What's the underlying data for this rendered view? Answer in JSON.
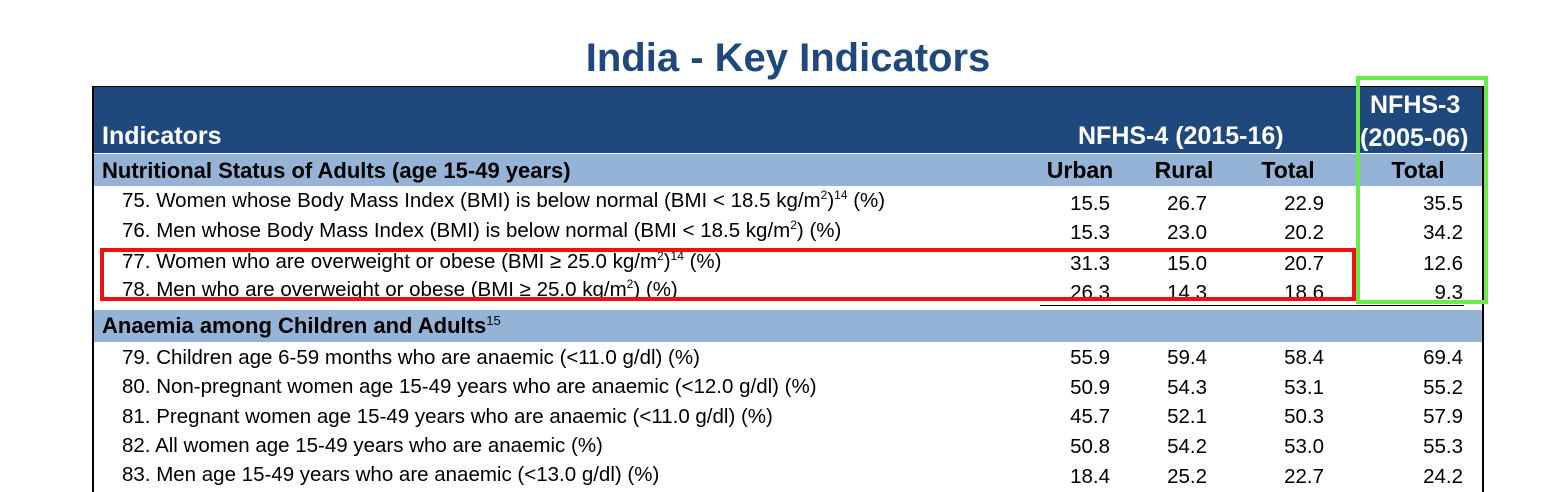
{
  "title": "India - Key Indicators",
  "header": {
    "indicators_label": "Indicators",
    "nfhs4_label": "NFHS-4 (2015-16)",
    "nfhs3_line1": "NFHS-3",
    "nfhs3_line2": "(2005-06)"
  },
  "columns": {
    "urban": "Urban",
    "rural": "Rural",
    "total": "Total",
    "total_nfhs3": "Total"
  },
  "sections": [
    {
      "title": "Nutritional Status of Adults (age 15-49 years)",
      "footnote": "",
      "rows": [
        {
          "num": "75.",
          "text_a": "Women whose Body Mass Index (BMI) is below normal (BMI < 18.5 kg/m",
          "sup1": "2",
          "text_b": ")",
          "sup2": "14",
          "text_c": " (%)",
          "urban": "15.5",
          "rural": "26.7",
          "total": "22.9",
          "nfhs3": "35.5"
        },
        {
          "num": "76.",
          "text_a": "Men whose Body Mass Index (BMI) is below normal (BMI < 18.5 kg/m",
          "sup1": "2",
          "text_b": ") (%)",
          "sup2": "",
          "text_c": "",
          "urban": "15.3",
          "rural": "23.0",
          "total": "20.2",
          "nfhs3": "34.2"
        },
        {
          "num": "77.",
          "text_a": "Women who are overweight or obese (BMI ≥ 25.0 kg/m",
          "sup1": "2",
          "text_b": ")",
          "sup2": "14",
          "text_c": " (%)",
          "urban": "31.3",
          "rural": "15.0",
          "total": "20.7",
          "nfhs3": "12.6"
        },
        {
          "num": "78.",
          "text_a": "Men who are overweight or obese (BMI ≥ 25.0 kg/m",
          "sup1": "2",
          "text_b": ") (%)",
          "sup2": "",
          "text_c": "",
          "urban": "26.3",
          "rural": "14.3",
          "total": "18.6",
          "nfhs3": "9.3"
        }
      ]
    },
    {
      "title": "Anaemia among Children and Adults",
      "footnote": "15",
      "rows": [
        {
          "num": "79.",
          "text": "Children age 6-59 months who are anaemic (<11.0 g/dl) (%)",
          "urban": "55.9",
          "rural": "59.4",
          "total": "58.4",
          "nfhs3": "69.4"
        },
        {
          "num": "80.",
          "text": "Non-pregnant women age 15-49 years who are anaemic (<12.0 g/dl) (%)",
          "urban": "50.9",
          "rural": "54.3",
          "total": "53.1",
          "nfhs3": "55.2"
        },
        {
          "num": "81.",
          "text": "Pregnant women age 15-49 years who are anaemic (<11.0 g/dl) (%)",
          "urban": "45.7",
          "rural": "52.1",
          "total": "50.3",
          "nfhs3": "57.9"
        },
        {
          "num": "82.",
          "text": "All women age 15-49 years who are anaemic (%)",
          "urban": "50.8",
          "rural": "54.2",
          "total": "53.0",
          "nfhs3": "55.3"
        },
        {
          "num": "83.",
          "text": "Men age 15-49 years who are anaemic (<13.0 g/dl) (%)",
          "urban": "18.4",
          "rural": "25.2",
          "total": "22.7",
          "nfhs3": "24.2"
        }
      ]
    }
  ],
  "highlight_colors": {
    "red_box": "#ee1111",
    "green_box": "#66ee44",
    "header_bg": "#1f497d",
    "band_bg": "#95b3d7"
  }
}
